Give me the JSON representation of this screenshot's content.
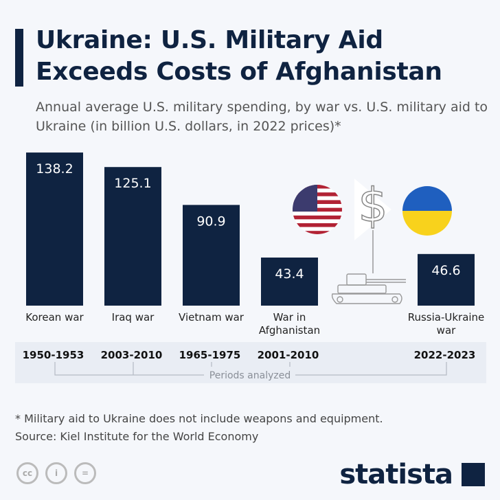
{
  "title": "Ukraine: U.S. Military Aid Exceeds Costs of Afghanistan",
  "subtitle": "Annual average U.S. military spending, by war vs. U.S. military aid to Ukraine (in billion U.S. dollars, in 2022 prices)*",
  "chart_data": {
    "type": "bar",
    "categories": [
      "Korean war",
      "Iraq war",
      "Vietnam war",
      "War in Afghanistan",
      "Russia-Ukraine war"
    ],
    "periods": [
      "1950-1953",
      "2003-2010",
      "1965-1975",
      "2001-2010",
      "2022-2023"
    ],
    "values": [
      138.2,
      125.1,
      90.9,
      43.4,
      46.6
    ],
    "period_label": "Periods analyzed",
    "bar_color": "#0f2341"
  },
  "footnote": "* Military aid to Ukraine does not include weapons and equipment.",
  "source": "Source: Kiel Institute for the World Economy",
  "brand": "statista",
  "icons": [
    "us-flag-icon",
    "dollar-icon",
    "tank-icon",
    "ukraine-flag-icon",
    "cc-icon",
    "attribution-icon",
    "no-derivatives-icon"
  ]
}
